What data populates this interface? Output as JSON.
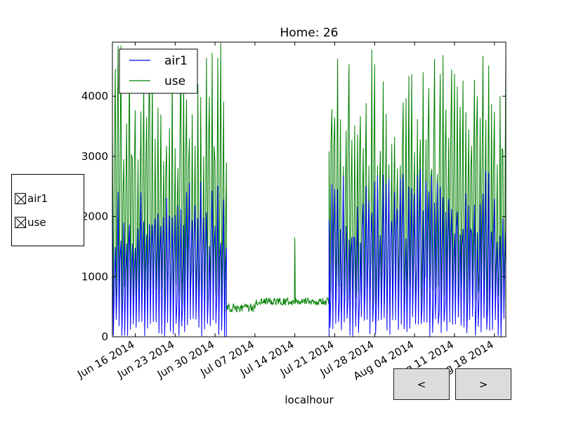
{
  "chart_data": {
    "type": "line",
    "title": "Home: 26",
    "xlabel": "localhour",
    "ylabel": "",
    "ylim": [
      0,
      4900
    ],
    "xlim": [
      "2014-06-12",
      "2014-08-20"
    ],
    "yticks": [
      0,
      1000,
      2000,
      3000,
      4000
    ],
    "ytick_labels": [
      "0",
      "1000",
      "2000",
      "3000",
      "4000"
    ],
    "xticks": [
      "2014-06-16",
      "2014-06-23",
      "2014-06-30",
      "2014-07-07",
      "2014-07-14",
      "2014-07-21",
      "2014-07-28",
      "2014-08-04",
      "2014-08-11",
      "2014-08-18"
    ],
    "xtick_labels": [
      "Jun 16 2014",
      "Jun 23 2014",
      "Jun 30 2014",
      "Jul 07 2014",
      "Jul 14 2014",
      "Jul 21 2014",
      "Jul 28 2014",
      "Aug 04 2014",
      "Aug 11 2014",
      "Aug 18 2014"
    ],
    "legend_position": "top-left",
    "grid": false,
    "series": [
      {
        "name": "air1",
        "color": "#0000ff",
        "regions": [
          {
            "start": "2014-06-12",
            "end": "2014-07-02",
            "pattern": "daily-cycle",
            "min": 0,
            "max": 2600
          },
          {
            "start": "2014-07-02",
            "end": "2014-07-20",
            "pattern": "flat",
            "value": 0
          },
          {
            "start": "2014-07-20",
            "end": "2014-08-20",
            "pattern": "daily-cycle",
            "min": 0,
            "max": 2800
          }
        ]
      },
      {
        "name": "use",
        "color": "#008000",
        "regions": [
          {
            "start": "2014-06-12",
            "end": "2014-07-02",
            "pattern": "daily-cycle",
            "min": 300,
            "max": 4900
          },
          {
            "start": "2014-07-02",
            "end": "2014-07-20",
            "pattern": "baseline",
            "value": 500,
            "spike_date": "2014-07-14",
            "spike_value": 1650
          },
          {
            "start": "2014-07-20",
            "end": "2014-08-20",
            "pattern": "daily-cycle",
            "min": 300,
            "max": 4900
          }
        ]
      }
    ]
  },
  "check_panel": {
    "items": [
      {
        "label": "air1",
        "checked": true
      },
      {
        "label": "use",
        "checked": true
      }
    ]
  },
  "nav": {
    "prev_label": "<",
    "next_label": ">"
  }
}
